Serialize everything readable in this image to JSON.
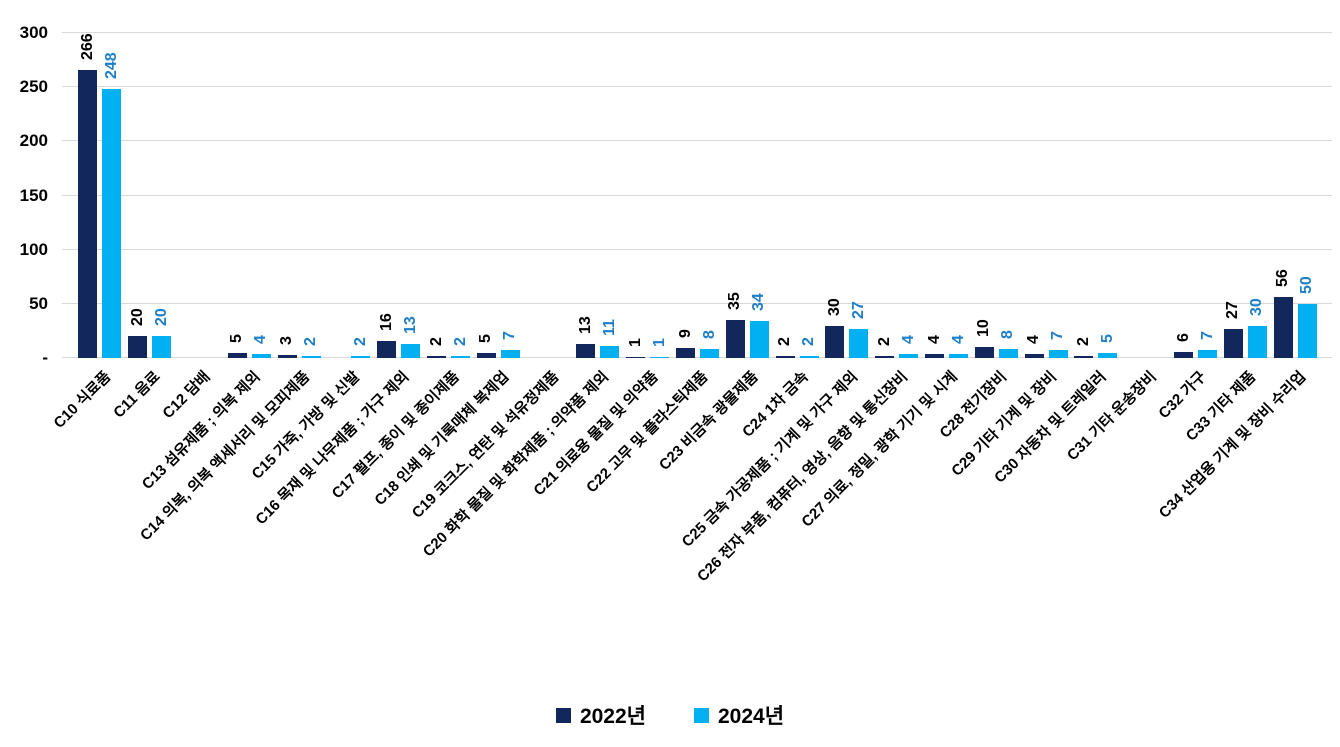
{
  "chart_data": {
    "type": "bar",
    "title": "",
    "xlabel": "",
    "ylabel": "",
    "ylim": [
      0,
      300
    ],
    "grid": true,
    "legend_position": "bottom",
    "colors": {
      "series_2022": "#12275B",
      "series_2024": "#00B0F0",
      "label_2022": "#000000",
      "label_2024": "#1E7FC8",
      "gridline": "#D9D9D9"
    },
    "yticks": [
      {
        "value": 0,
        "label": "-"
      },
      {
        "value": 50,
        "label": "50"
      },
      {
        "value": 100,
        "label": "100"
      },
      {
        "value": 150,
        "label": "150"
      },
      {
        "value": 200,
        "label": "200"
      },
      {
        "value": 250,
        "label": "250"
      },
      {
        "value": 300,
        "label": "300"
      }
    ],
    "categories": [
      "C10 식료품",
      "C11 음료",
      "C12 담배",
      "C13 섬유제품 ; 의복 제외",
      "C14 의복, 의복 액세서리 및 모피제품",
      "C15 가죽, 가방 및 신발",
      "C16 목재 및 나무제품 ; 가구 제외",
      "C17 펄프, 종이 및 종이제품",
      "C18 인쇄 및 기록매체 복제업",
      "C19 코크스, 연탄 및 석유정제품",
      "C20 화학 물질 및 화학제품 ; 의약품 제외",
      "C21 의료용 물질 및 의약품",
      "C22 고무 및 플라스틱제품",
      "C23 비금속 광물제품",
      "C24 1차 금속",
      "C25 금속 가공제품 ; 기계 및 가구 제외",
      "C26 전자 부품, 컴퓨터, 영상, 음향 및 통신장비",
      "C27 의료, 정밀, 광학 기기 및 시계",
      "C28 전기장비",
      "C29 기타 기계 및 장비",
      "C30 자동차 및 트레일러",
      "C31 기타 운송장비",
      "C32 가구",
      "C33 기타 제품",
      "C34 산업용 기계 및 장비 수리업"
    ],
    "series": [
      {
        "name": "2022년",
        "color": "#12275B",
        "label_color": "#000000",
        "values": [
          266,
          20,
          null,
          5,
          3,
          null,
          16,
          2,
          5,
          null,
          13,
          1,
          9,
          35,
          2,
          30,
          2,
          4,
          10,
          4,
          2,
          null,
          6,
          27,
          56
        ]
      },
      {
        "name": "2024년",
        "color": "#00B0F0",
        "label_color": "#1E7FC8",
        "values": [
          248,
          20,
          null,
          4,
          2,
          2,
          13,
          2,
          7,
          null,
          11,
          1,
          8,
          34,
          2,
          27,
          4,
          4,
          8,
          7,
          5,
          null,
          7,
          30,
          50
        ]
      }
    ]
  }
}
